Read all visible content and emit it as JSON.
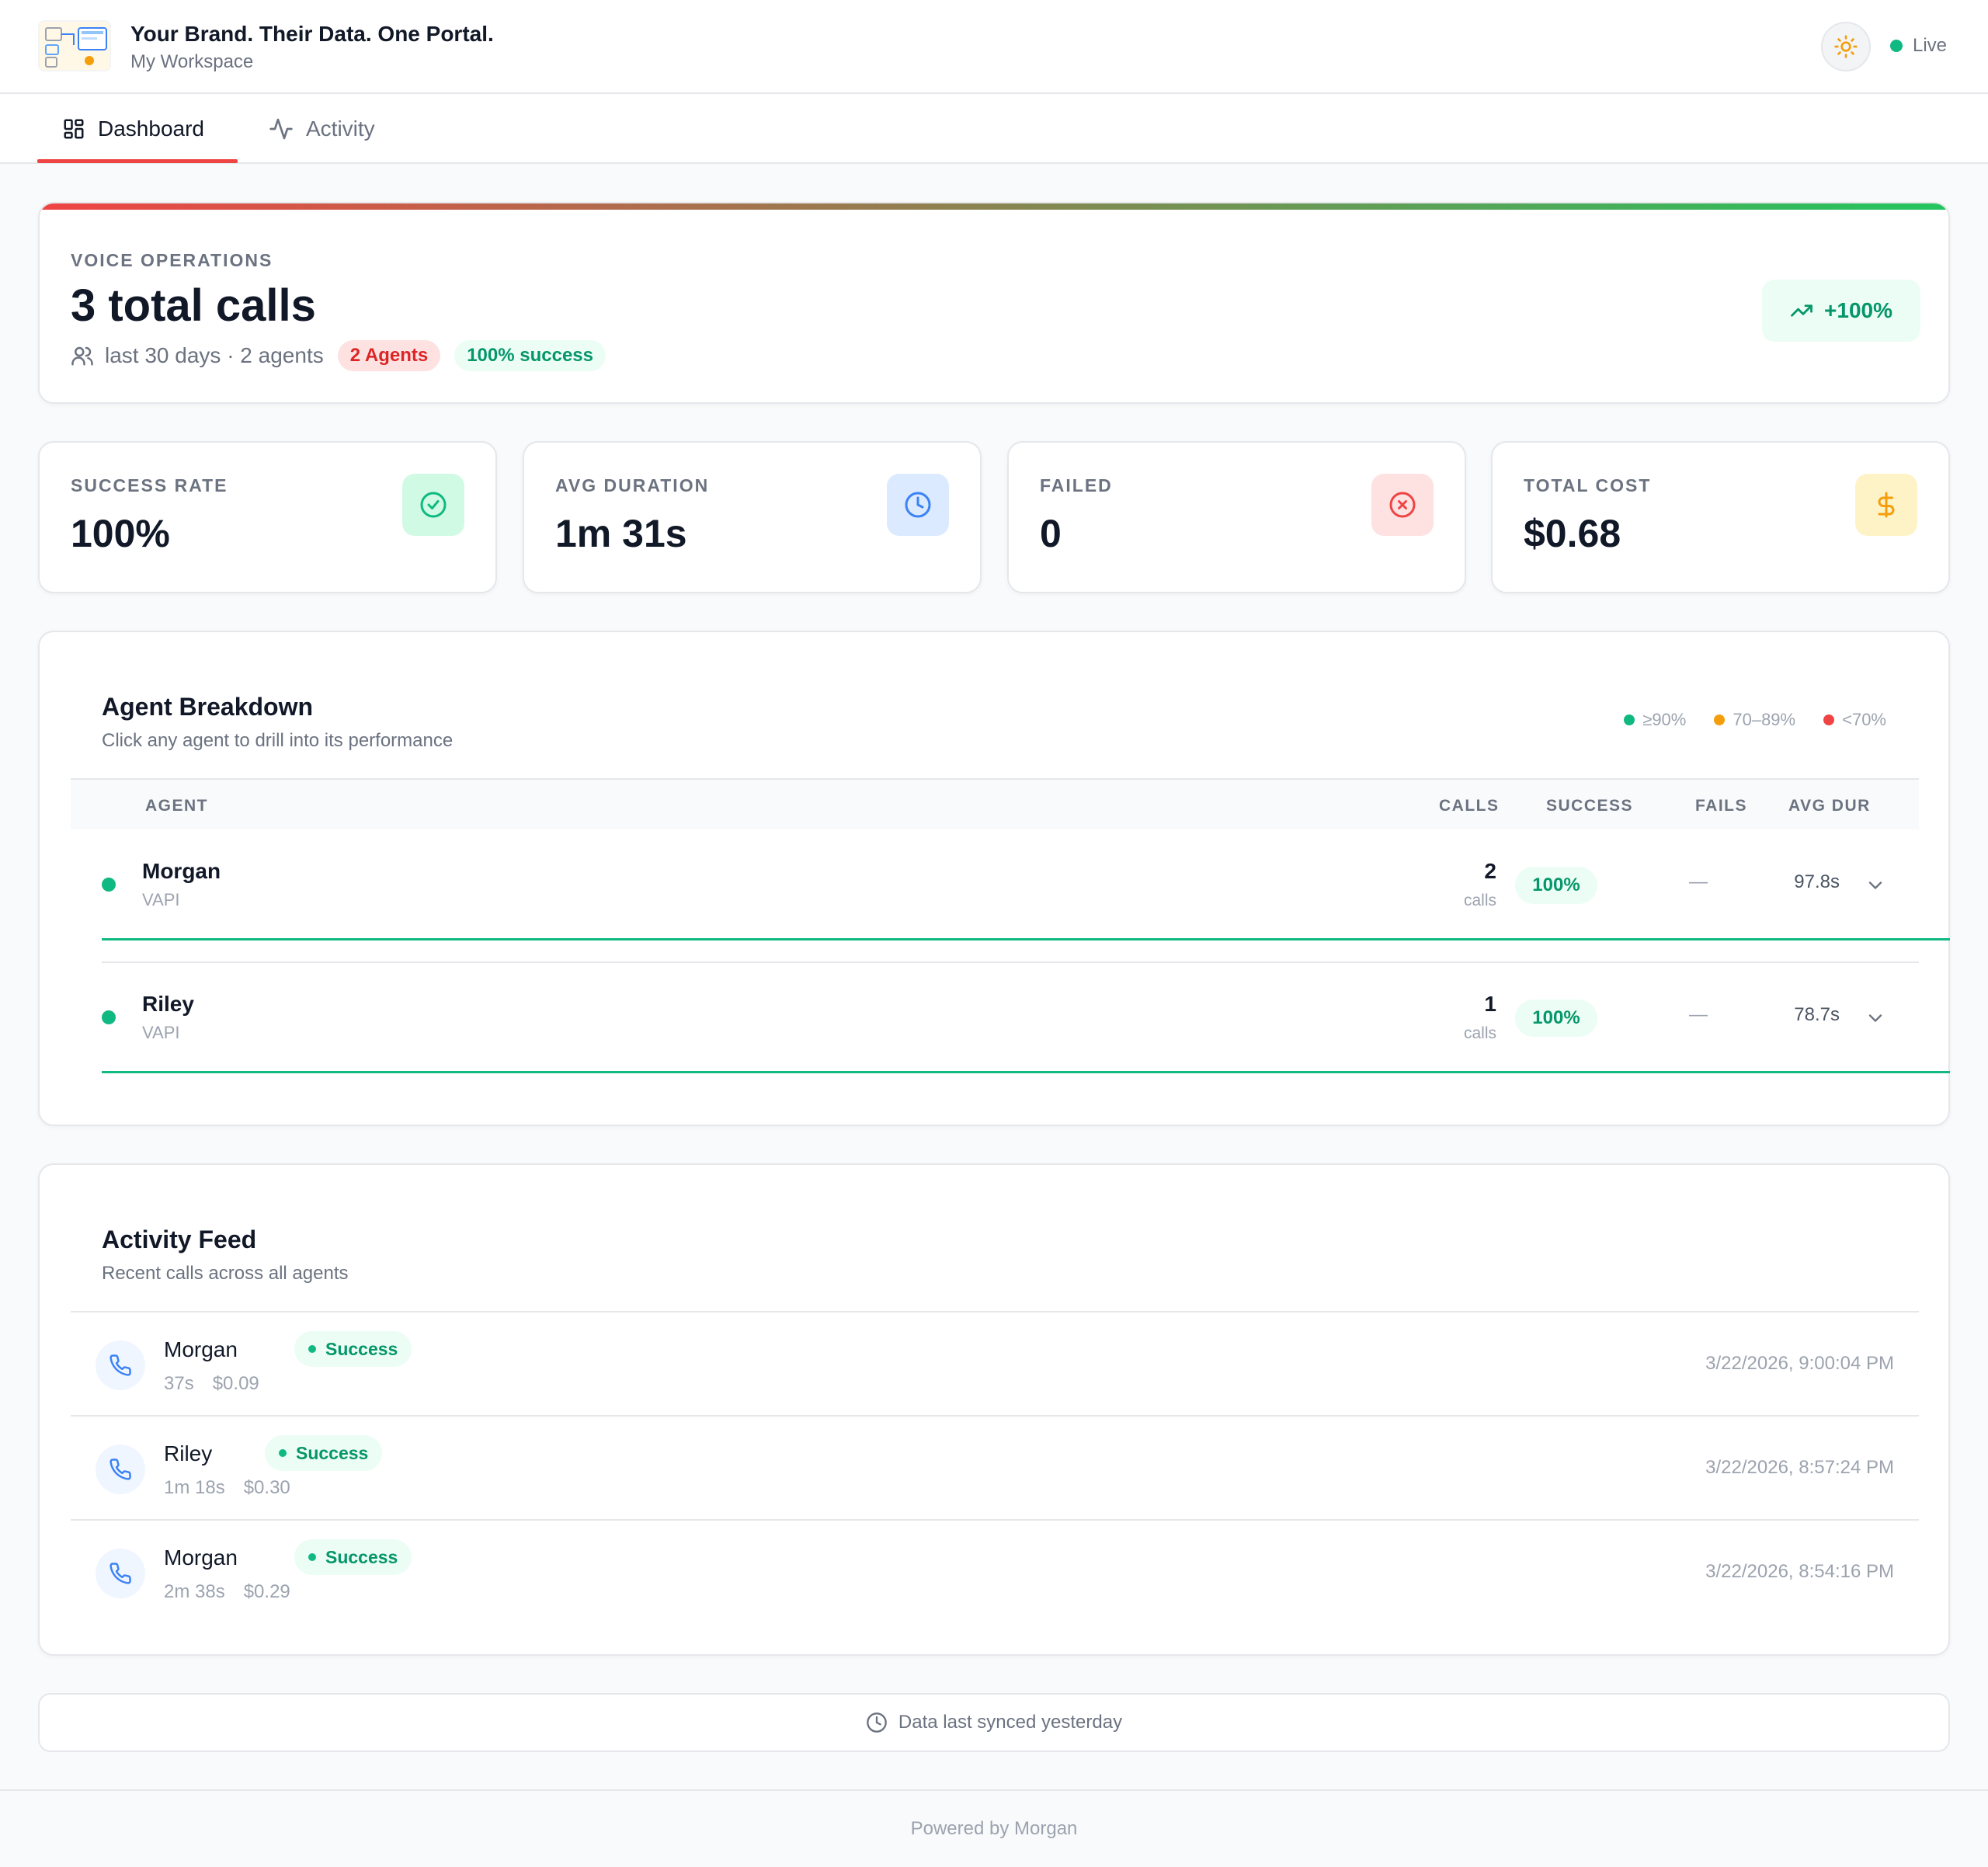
{
  "header": {
    "title": "Your Brand. Their Data. One Portal.",
    "subtitle": "My Workspace",
    "status": "Live",
    "theme_icon": "sun-icon"
  },
  "tabs": [
    {
      "label": "Dashboard",
      "icon": "grid-icon",
      "active": true
    },
    {
      "label": "Activity",
      "icon": "activity-icon",
      "active": false
    }
  ],
  "hero": {
    "eyebrow": "VOICE OPERATIONS",
    "title": "3 total calls",
    "meta": "last 30 days · 2 agents",
    "badge_agents": "2 Agents",
    "badge_success": "100% success",
    "trend": "+100%"
  },
  "stats": [
    {
      "label": "SUCCESS RATE",
      "value": "100%",
      "icon": "check-circle-icon",
      "color": "#10b981"
    },
    {
      "label": "AVG DURATION",
      "value": "1m 31s",
      "icon": "clock-icon",
      "color": "#3b82f6"
    },
    {
      "label": "FAILED",
      "value": "0",
      "icon": "x-circle-icon",
      "color": "#ef4444"
    },
    {
      "label": "TOTAL COST",
      "value": "$0.68",
      "icon": "dollar-icon",
      "color": "#f59e0b"
    }
  ],
  "agents": {
    "title": "Agent Breakdown",
    "subtitle": "Click any agent to drill into its performance",
    "legend": [
      "≥90%",
      "70–89%",
      "<70%"
    ],
    "columns": [
      "AGENT",
      "CALLS",
      "SUCCESS",
      "FAILS",
      "AVG DUR"
    ],
    "rows": [
      {
        "name": "Morgan",
        "vendor": "VAPI",
        "calls": "2",
        "calls_label": "calls",
        "success": "100%",
        "fails": "—",
        "avg_dur": "97.8s"
      },
      {
        "name": "Riley",
        "vendor": "VAPI",
        "calls": "1",
        "calls_label": "calls",
        "success": "100%",
        "fails": "—",
        "avg_dur": "78.7s"
      }
    ]
  },
  "feed": {
    "title": "Activity Feed",
    "subtitle": "Recent calls across all agents",
    "items": [
      {
        "name": "Morgan",
        "status": "Success",
        "duration": "37s",
        "cost": "$0.09",
        "time": "3/22/2026, 9:00:04 PM"
      },
      {
        "name": "Riley",
        "status": "Success",
        "duration": "1m 18s",
        "cost": "$0.30",
        "time": "3/22/2026, 8:57:24 PM"
      },
      {
        "name": "Morgan",
        "status": "Success",
        "duration": "2m 38s",
        "cost": "$0.29",
        "time": "3/22/2026, 8:54:16 PM"
      }
    ]
  },
  "sync": "Data last synced yesterday",
  "footer": "Powered by Morgan",
  "colors": {
    "accent": "#ef4444",
    "success": "#10b981",
    "warning": "#f59e0b",
    "danger": "#ef4444"
  }
}
